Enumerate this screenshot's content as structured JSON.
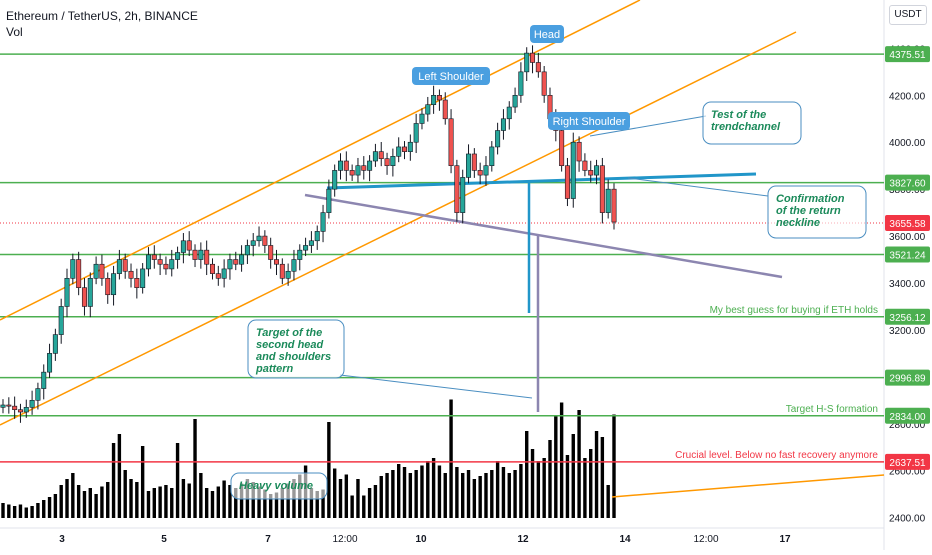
{
  "header": {
    "symbol_line": "Ethereum / TetherUS, 2h, BINANCE",
    "volume_label": "Vol"
  },
  "currency": "USDT",
  "chart_data": {
    "type": "candlestick",
    "title": "Ethereum / TetherUS, 2h, BINANCE",
    "ylim": [
      2400,
      4600
    ],
    "x_ticks": [
      "3",
      "5",
      "7",
      "12:00",
      "10",
      "12",
      "14",
      "12:00",
      "17"
    ],
    "y_ticks": [
      2400,
      2600,
      2800,
      3000,
      3200,
      3400,
      3600,
      3800,
      4000,
      4200,
      4400
    ],
    "y_tick_labels": [
      "2400.00",
      "2600.00",
      "2800.00",
      "3000.00",
      "3200.00",
      "3400.00",
      "3600.00",
      "3800.00",
      "4000.00",
      "4200.00",
      "4400.00"
    ],
    "price_levels": [
      {
        "value": 4375.51,
        "label": "4375.51",
        "color": "#4caf50"
      },
      {
        "value": 3827.6,
        "label": "3827.60",
        "color": "#4caf50"
      },
      {
        "value": 3521.24,
        "label": "3521.24",
        "color": "#4caf50"
      },
      {
        "value": 3256.12,
        "label": "3256.12",
        "color": "#4caf50",
        "note": "My best guess for buying if ETH holds"
      },
      {
        "value": 2996.89,
        "label": "2996.89",
        "color": "#4caf50"
      },
      {
        "value": 2834.0,
        "label": "2834.00",
        "color": "#4caf50",
        "note": "Target H-S formation"
      },
      {
        "value": 2637.51,
        "label": "2637.51",
        "color": "#f23645",
        "note": "Crucial level. Below no fast recovery anymore"
      }
    ],
    "current_price": {
      "value": 3655.58,
      "label": "3655.58",
      "color": "#f23645"
    },
    "closes": [
      2880,
      2875,
      2860,
      2850,
      2870,
      2900,
      2950,
      3020,
      3100,
      3180,
      3300,
      3420,
      3500,
      3380,
      3300,
      3420,
      3480,
      3420,
      3350,
      3440,
      3500,
      3450,
      3420,
      3380,
      3460,
      3520,
      3500,
      3480,
      3460,
      3500,
      3530,
      3580,
      3540,
      3500,
      3540,
      3480,
      3440,
      3420,
      3460,
      3500,
      3480,
      3520,
      3560,
      3580,
      3600,
      3560,
      3500,
      3480,
      3420,
      3450,
      3500,
      3540,
      3560,
      3580,
      3620,
      3700,
      3800,
      3880,
      3920,
      3880,
      3860,
      3900,
      3880,
      3920,
      3960,
      3930,
      3900,
      3940,
      3980,
      3960,
      4000,
      4080,
      4120,
      4160,
      4200,
      4180,
      4100,
      3900,
      3700,
      3850,
      3950,
      3880,
      3860,
      3900,
      3980,
      4050,
      4100,
      4150,
      4200,
      4300,
      4380,
      4340,
      4300,
      4200,
      4100,
      4050,
      3900,
      3760,
      4000,
      3920,
      3880,
      3860,
      3900,
      3700,
      3800,
      3660
    ],
    "volume_bars": [
      1.0,
      0.9,
      0.8,
      0.9,
      0.7,
      0.8,
      1.0,
      1.2,
      1.4,
      1.6,
      2.2,
      2.6,
      3.0,
      2.2,
      1.8,
      2.0,
      1.6,
      2.1,
      2.4,
      5.0,
      5.6,
      3.2,
      2.6,
      2.4,
      4.8,
      1.8,
      2.0,
      2.1,
      2.2,
      2.0,
      5.0,
      2.6,
      2.3,
      6.6,
      3.0,
      2.0,
      1.8,
      2.1,
      2.5,
      2.2,
      2.0,
      2.3,
      2.6,
      2.4,
      2.1,
      1.9,
      1.6,
      1.7,
      2.0,
      2.3,
      2.6,
      2.9,
      3.5,
      2.0,
      1.8,
      1.9,
      6.4,
      3.3,
      2.6,
      2.9,
      1.5,
      2.6,
      1.5,
      2.0,
      2.2,
      2.8,
      3.0,
      3.2,
      3.6,
      3.4,
      3.0,
      3.2,
      3.5,
      3.8,
      4.0,
      3.5,
      3.0,
      7.9,
      3.4,
      3.0,
      3.2,
      2.6,
      2.8,
      3.0,
      3.2,
      3.8,
      3.4,
      3.0,
      3.2,
      3.6,
      5.8,
      4.6,
      3.8,
      4.0,
      5.2,
      6.8,
      7.7,
      4.2,
      5.6,
      7.2,
      4.0,
      4.6,
      5.8,
      5.4,
      2.2,
      6.9
    ]
  },
  "annotations": {
    "head": "Head",
    "left_shoulder": "Left Shoulder",
    "right_shoulder": "Right Shoulder",
    "test_trendchannel": "Test of the trendchannel",
    "confirmation": "Confirmation of the return neckline",
    "target_second": "Target of the second head and shoulders pattern",
    "heavy_volume": "Heavy volume"
  }
}
